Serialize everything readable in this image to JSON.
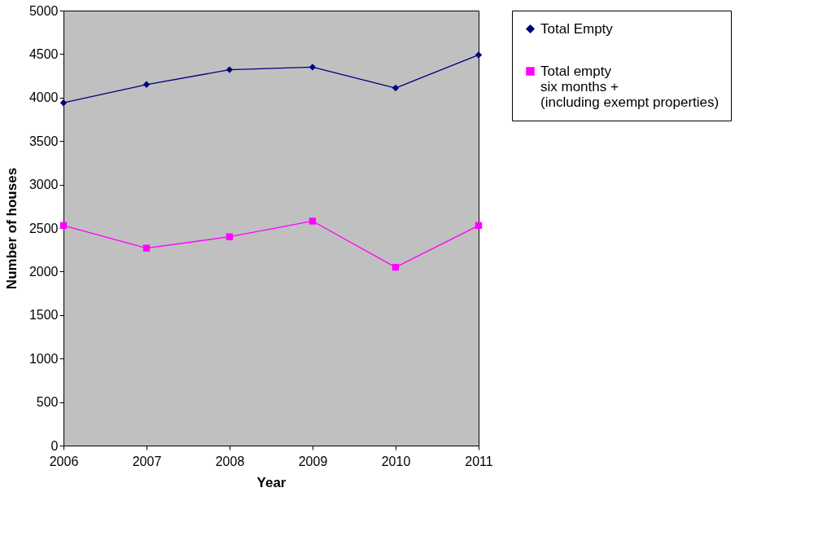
{
  "chart_data": {
    "type": "line",
    "xlabel": "Year",
    "ylabel": "Number of houses",
    "categories": [
      "2006",
      "2007",
      "2008",
      "2009",
      "2010",
      "2011"
    ],
    "series": [
      {
        "name": "Total Empty",
        "color": "#000080",
        "marker": "diamond",
        "values": [
          3940,
          4150,
          4320,
          4350,
          4110,
          4490
        ]
      },
      {
        "name": "Total empty\nsix months +\n(including exempt properties)",
        "color": "#ff00ff",
        "marker": "square",
        "values": [
          2530,
          2270,
          2400,
          2580,
          2050,
          2530
        ]
      }
    ],
    "ylim": [
      0,
      5000
    ],
    "yticks": [
      0,
      500,
      1000,
      1500,
      2000,
      2500,
      3000,
      3500,
      4000,
      4500,
      5000
    ],
    "grid": false,
    "legend": "top right",
    "line_style": "solid"
  }
}
